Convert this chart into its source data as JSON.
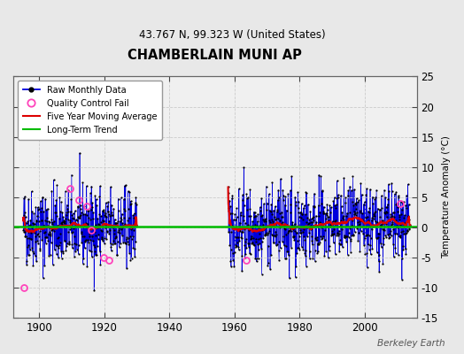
{
  "title": "CHAMBERLAIN MUNI AP",
  "subtitle": "43.767 N, 99.323 W (United States)",
  "ylabel": "Temperature Anomaly (°C)",
  "watermark": "Berkeley Earth",
  "ylim": [
    -15,
    25
  ],
  "yticks": [
    -15,
    -10,
    -5,
    0,
    5,
    10,
    15,
    20,
    25
  ],
  "xlim": [
    1892,
    2016
  ],
  "xticks": [
    1900,
    1920,
    1940,
    1960,
    1980,
    2000
  ],
  "fig_background": "#e8e8e8",
  "plot_background": "#f0f0f0",
  "raw_color": "#0000dd",
  "dot_color": "#000000",
  "qc_color": "#ff44bb",
  "moving_avg_color": "#dd0000",
  "trend_color": "#00bb00",
  "seed": 42,
  "period1_start": 1895,
  "period1_end": 1929,
  "period2_start": 1958,
  "period2_end": 2013,
  "qc_fail_points": [
    [
      1895.3,
      -10.0
    ],
    [
      1909.5,
      6.5
    ],
    [
      1912.0,
      4.5
    ],
    [
      1914.5,
      3.5
    ],
    [
      1916.0,
      -0.5
    ],
    [
      1919.8,
      -5.0
    ],
    [
      1921.5,
      -5.5
    ],
    [
      1963.5,
      -5.5
    ],
    [
      2011.0,
      4.0
    ]
  ]
}
